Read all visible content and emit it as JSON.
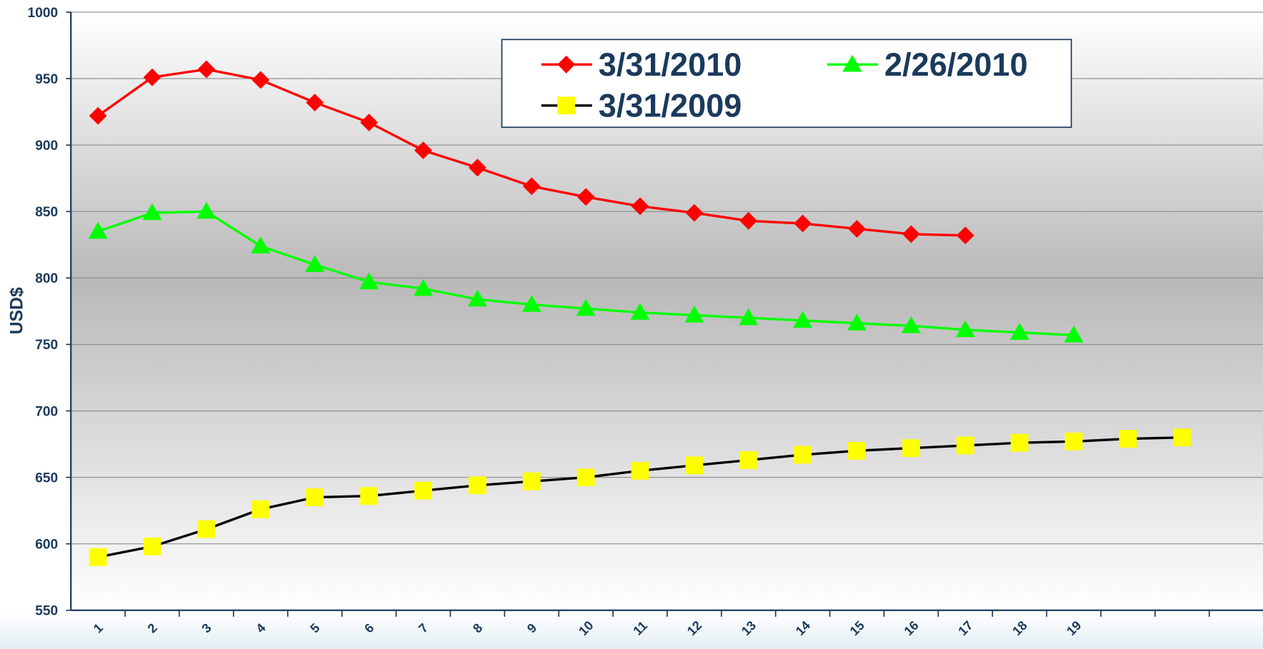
{
  "chart_data": {
    "type": "line",
    "y_label": "USD$",
    "categories": [
      "1",
      "2",
      "3",
      "4",
      "5",
      "6",
      "7",
      "8",
      "9",
      "10",
      "11",
      "12",
      "13",
      "14",
      "15",
      "16",
      "17",
      "18",
      "19",
      null,
      null,
      null
    ],
    "series": [
      {
        "name": "3/31/2010",
        "color": "#ff0000",
        "marker": "diamond",
        "marker_color": "#ff0000",
        "values": [
          922,
          951,
          957,
          949,
          932,
          917,
          896,
          883,
          869,
          861,
          854,
          849,
          843,
          841,
          837,
          833,
          832,
          null,
          null,
          null,
          null,
          null
        ]
      },
      {
        "name": "2/26/2010",
        "color": "#00ff00",
        "marker": "triangle",
        "marker_color": "#00ff00",
        "values": [
          835,
          849,
          850,
          824,
          810,
          797,
          792,
          784,
          780,
          777,
          774,
          772,
          770,
          768,
          766,
          764,
          761,
          759,
          757,
          null,
          null,
          null
        ]
      },
      {
        "name": "3/31/2009",
        "color": "#000000",
        "marker": "square",
        "marker_color": "#ffff00",
        "values": [
          590,
          598,
          611,
          626,
          635,
          636,
          640,
          644,
          647,
          650,
          655,
          659,
          663,
          667,
          670,
          672,
          674,
          676,
          677,
          679,
          680,
          null
        ]
      }
    ],
    "ylim": [
      550,
      1000
    ],
    "yticks": [
      550,
      600,
      650,
      700,
      750,
      800,
      850,
      900,
      950,
      1000
    ],
    "grid": true
  }
}
